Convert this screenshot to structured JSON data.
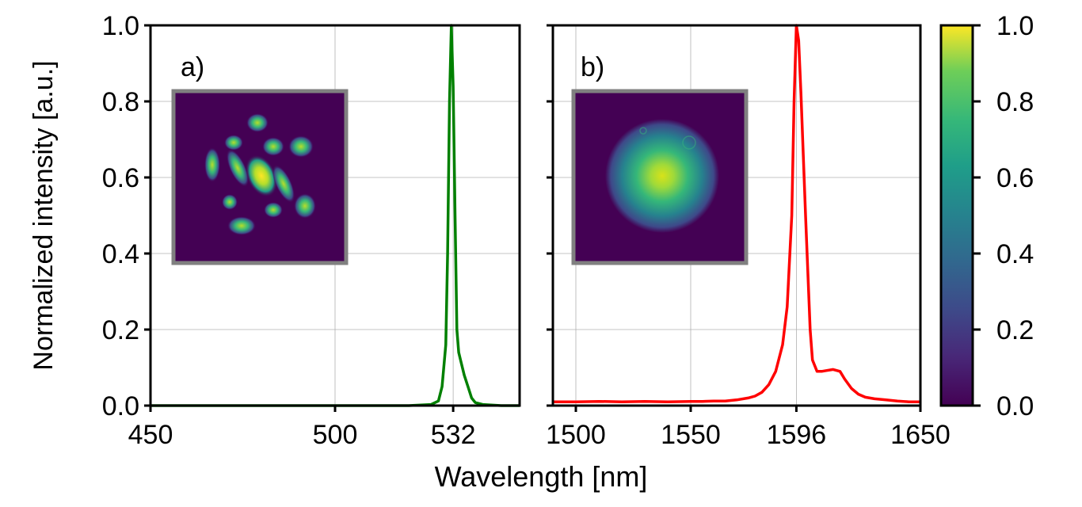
{
  "chart_data": [
    {
      "type": "line",
      "panel_label": "a)",
      "ylabel": "Normalized intensity [a.u.]",
      "xlim": [
        450,
        550
      ],
      "ylim": [
        0,
        1
      ],
      "xticks": [
        450,
        500,
        532
      ],
      "yticks": [
        0.0,
        0.2,
        0.4,
        0.6,
        0.8,
        1.0
      ],
      "ytick_labels": [
        "0.0",
        "0.2",
        "0.4",
        "0.6",
        "0.8",
        "1.0"
      ],
      "grid": true,
      "series": [
        {
          "color": "#008000",
          "x": [
            450,
            520,
            526,
            528,
            529,
            530,
            530.5,
            531,
            531.5,
            532,
            532.5,
            533,
            533.5,
            534,
            535,
            536,
            537,
            538,
            540,
            545,
            550
          ],
          "y": [
            0,
            0.0,
            0.003,
            0.012,
            0.05,
            0.16,
            0.4,
            0.8,
            1.0,
            0.84,
            0.5,
            0.2,
            0.14,
            0.12,
            0.08,
            0.05,
            0.02,
            0.008,
            0.003,
            0.0,
            0.0
          ]
        }
      ],
      "inset": {
        "type": "image",
        "pattern": "multi-lobe mode intensity map",
        "colormap": "viridis"
      }
    },
    {
      "type": "line",
      "panel_label": "b)",
      "xlim": [
        1490,
        1650
      ],
      "ylim": [
        0,
        1
      ],
      "xticks": [
        1500,
        1550,
        1596,
        1650
      ],
      "yticks": [
        0.0,
        0.2,
        0.4,
        0.6,
        0.8,
        1.0
      ],
      "grid": true,
      "series": [
        {
          "color": "#ff0000",
          "x": [
            1490,
            1500,
            1510,
            1520,
            1530,
            1540,
            1550,
            1555,
            1560,
            1565,
            1570,
            1575,
            1578,
            1581,
            1584,
            1587,
            1590,
            1592,
            1594,
            1595,
            1596,
            1597,
            1598,
            1600,
            1602,
            1603,
            1605,
            1607,
            1609,
            1612,
            1615,
            1617,
            1620,
            1623,
            1626,
            1630,
            1635,
            1640,
            1645,
            1650
          ],
          "y": [
            0.01,
            0.01,
            0.011,
            0.01,
            0.011,
            0.01,
            0.011,
            0.011,
            0.012,
            0.012,
            0.015,
            0.02,
            0.025,
            0.035,
            0.055,
            0.09,
            0.16,
            0.26,
            0.5,
            0.8,
            1.0,
            0.96,
            0.82,
            0.5,
            0.2,
            0.12,
            0.09,
            0.09,
            0.092,
            0.095,
            0.09,
            0.07,
            0.045,
            0.03,
            0.022,
            0.018,
            0.015,
            0.012,
            0.01,
            0.01
          ]
        }
      ],
      "inset": {
        "type": "image",
        "pattern": "single gaussian spot intensity map",
        "colormap": "viridis"
      }
    }
  ],
  "shared_xlabel": "Wavelength [nm]",
  "colorbar": {
    "colormap": "viridis",
    "range": [
      0,
      1
    ],
    "ticks": [
      0.0,
      0.2,
      0.4,
      0.6,
      0.8,
      1.0
    ],
    "tick_labels": [
      "0.0",
      "0.2",
      "0.4",
      "0.6",
      "0.8",
      "1.0"
    ]
  },
  "colors": {
    "grid": "#b0b0b0",
    "inset_border": "#808080",
    "viridis_low": "#440154",
    "viridis_high": "#fde725"
  }
}
